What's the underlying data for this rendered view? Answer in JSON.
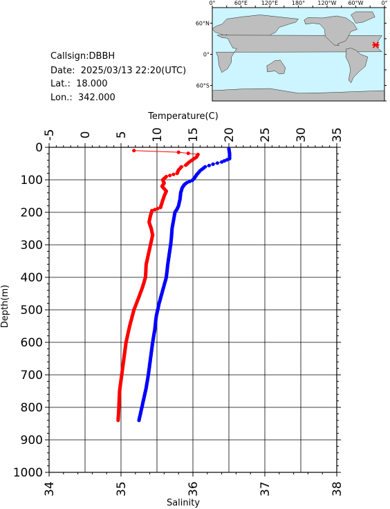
{
  "info": {
    "callsign": "Callsign:DBBH",
    "date_label": "Date:",
    "date_value": "2025/03/13 22:20(UTC)",
    "lat_label": "Lat.:",
    "lat_value": "18.000",
    "lon_label": "Lon.:",
    "lon_value": "342.000"
  },
  "map": {
    "lon_ticks": [
      "0°",
      "60°E",
      "120°E",
      "180°",
      "120°W",
      "60°W",
      "0°"
    ],
    "lat_ticks": [
      "60°N",
      "0°",
      "60°S"
    ],
    "station_lat": 18.0,
    "station_lon": 342.0,
    "ocean_color": "#ccf5ff",
    "land_color": "#bebebe",
    "marker_color": "#ff0000"
  },
  "chart_data": {
    "type": "line",
    "y_axis": {
      "label": "Depth(m)",
      "range": [
        0,
        1000
      ],
      "inverted": true,
      "ticks": [
        "0",
        "100",
        "200",
        "300",
        "400",
        "500",
        "600",
        "700",
        "800",
        "900",
        "1000"
      ]
    },
    "x_axis_top": {
      "label": "Temperature(C)",
      "range": [
        -5,
        35
      ],
      "ticks": [
        "-5",
        "0",
        "5",
        "10",
        "15",
        "20",
        "25",
        "30",
        "35"
      ]
    },
    "x_axis_bottom": {
      "label": "Salinity",
      "range": [
        34,
        38
      ],
      "ticks": [
        "34",
        "35",
        "36",
        "37",
        "38"
      ]
    },
    "grid": true,
    "series": [
      {
        "color": "#0000ff",
        "axis": "top",
        "points": [
          [
            20.0,
            5
          ],
          [
            20.1,
            20
          ],
          [
            20.1,
            35
          ],
          [
            19.0,
            45
          ],
          [
            17.8,
            52
          ],
          [
            16.7,
            60
          ],
          [
            16.0,
            72
          ],
          [
            15.5,
            85
          ],
          [
            15.2,
            95
          ],
          [
            14.9,
            102
          ],
          [
            14.2,
            108
          ],
          [
            13.8,
            115
          ],
          [
            13.5,
            125
          ],
          [
            13.3,
            140
          ],
          [
            13.2,
            160
          ],
          [
            13.0,
            180
          ],
          [
            12.8,
            190
          ],
          [
            12.5,
            200
          ],
          [
            12.3,
            225
          ],
          [
            12.1,
            250
          ],
          [
            12.0,
            280
          ],
          [
            11.9,
            300
          ],
          [
            11.7,
            330
          ],
          [
            11.5,
            360
          ],
          [
            11.3,
            400
          ],
          [
            10.8,
            440
          ],
          [
            10.3,
            480
          ],
          [
            9.9,
            520
          ],
          [
            9.7,
            560
          ],
          [
            9.4,
            600
          ],
          [
            9.1,
            650
          ],
          [
            8.8,
            700
          ],
          [
            8.5,
            740
          ],
          [
            8.1,
            780
          ],
          [
            7.7,
            820
          ],
          [
            7.5,
            840
          ]
        ]
      },
      {
        "color": "#ff0000",
        "axis": "bottom",
        "points": [
          [
            35.18,
            10
          ],
          [
            35.8,
            15
          ],
          [
            36.07,
            22
          ],
          [
            36.05,
            30
          ],
          [
            35.95,
            45
          ],
          [
            35.9,
            55
          ],
          [
            35.84,
            60
          ],
          [
            35.8,
            70
          ],
          [
            35.78,
            80
          ],
          [
            35.63,
            90
          ],
          [
            35.58,
            100
          ],
          [
            35.6,
            110
          ],
          [
            35.57,
            120
          ],
          [
            35.63,
            135
          ],
          [
            35.6,
            150
          ],
          [
            35.57,
            170
          ],
          [
            35.55,
            185
          ],
          [
            35.43,
            195
          ],
          [
            35.41,
            210
          ],
          [
            35.39,
            230
          ],
          [
            35.42,
            250
          ],
          [
            35.44,
            270
          ],
          [
            35.42,
            290
          ],
          [
            35.4,
            310
          ],
          [
            35.38,
            330
          ],
          [
            35.35,
            360
          ],
          [
            35.34,
            400
          ],
          [
            35.3,
            430
          ],
          [
            35.25,
            460
          ],
          [
            35.18,
            500
          ],
          [
            35.12,
            550
          ],
          [
            35.07,
            600
          ],
          [
            35.04,
            650
          ],
          [
            35.01,
            700
          ],
          [
            34.98,
            750
          ],
          [
            34.97,
            800
          ],
          [
            34.96,
            840
          ]
        ]
      }
    ]
  }
}
